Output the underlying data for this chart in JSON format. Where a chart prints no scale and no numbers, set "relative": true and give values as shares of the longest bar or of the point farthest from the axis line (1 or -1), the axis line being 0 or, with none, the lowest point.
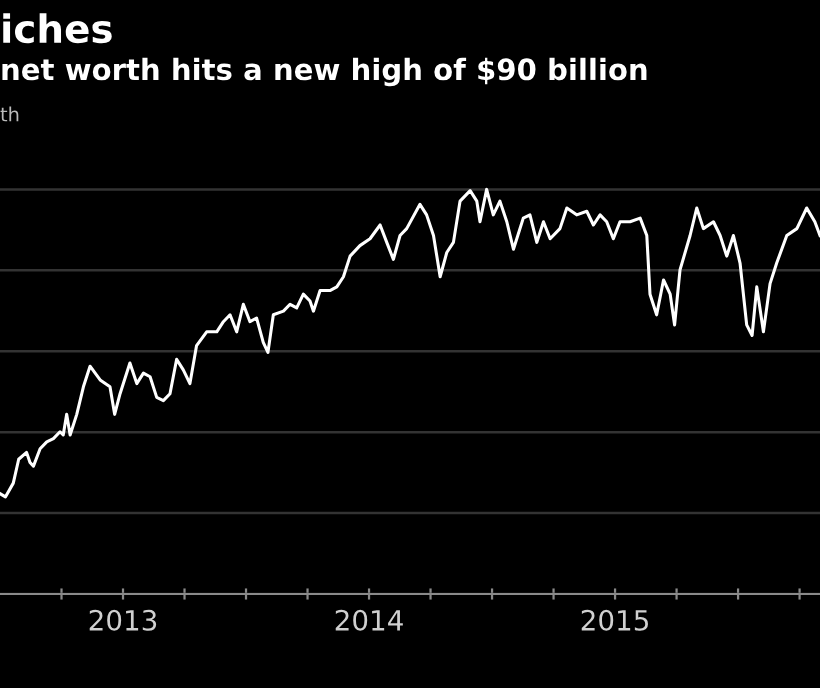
{
  "chart_data": {
    "type": "line",
    "title": "iches",
    "subtitle": "net worth hits a new high of $90 billion",
    "ylabel": "th",
    "relative": true,
    "grid": "y",
    "xlim": [
      2013.0,
      2016.333
    ],
    "xticks": [
      {
        "value": 2013.25,
        "label": null
      },
      {
        "value": 2013.5,
        "label": "2013"
      },
      {
        "value": 2013.75,
        "label": null
      },
      {
        "value": 2014,
        "label": null
      },
      {
        "value": 2014.25,
        "label": null
      },
      {
        "value": 2014.5,
        "label": "2014"
      },
      {
        "value": 2014.75,
        "label": null
      },
      {
        "value": 2015,
        "label": null
      },
      {
        "value": 2015.25,
        "label": null
      },
      {
        "value": 2015.5,
        "label": "2015"
      },
      {
        "value": 2015.75,
        "label": null
      },
      {
        "value": 2016,
        "label": null
      },
      {
        "value": 2016.25,
        "label": null
      }
    ],
    "series": [
      {
        "color": "#ffffff",
        "x": [
          2013.0,
          2013.022,
          2013.054,
          2013.076,
          2013.108,
          2013.122,
          2013.136,
          2013.163,
          2013.19,
          2013.217,
          2013.244,
          2013.257,
          2013.271,
          2013.285,
          2013.312,
          2013.339,
          2013.366,
          2013.407,
          2013.447,
          2013.466,
          2013.488,
          2013.528,
          2013.556,
          2013.583,
          2013.61,
          2013.637,
          2013.664,
          2013.691,
          2013.718,
          2013.745,
          2013.772,
          2013.799,
          2013.84,
          2013.881,
          2013.908,
          2013.935,
          2013.962,
          2013.989,
          2014.016,
          2014.043,
          2014.07,
          2014.089,
          2014.111,
          2014.152,
          2014.179,
          2014.206,
          2014.233,
          2014.26,
          2014.274,
          2014.301,
          2014.341,
          2014.369,
          2014.396,
          2014.423,
          2014.463,
          2014.504,
          2014.545,
          2014.572,
          2014.599,
          2014.626,
          2014.653,
          2014.707,
          2014.734,
          2014.762,
          2014.789,
          2014.816,
          2014.843,
          2014.87,
          2014.911,
          2014.938,
          2014.951,
          2014.978,
          2015.005,
          2015.032,
          2015.06,
          2015.087,
          2015.127,
          2015.154,
          2015.182,
          2015.209,
          2015.236,
          2015.276,
          2015.304,
          2015.344,
          2015.385,
          2015.412,
          2015.439,
          2015.466,
          2015.493,
          2015.52,
          2015.561,
          2015.602,
          2015.629,
          2015.642,
          2015.669,
          2015.697,
          2015.724,
          2015.742,
          2015.764,
          2015.805,
          2015.832,
          2015.859,
          2015.9,
          2015.927,
          2015.954,
          2015.981,
          2016.008,
          2016.035,
          2016.057,
          2016.076,
          2016.103,
          2016.13,
          2016.157,
          2016.198,
          2016.239,
          2016.279,
          2016.312,
          2016.333
        ],
        "values": [
          0.248,
          0.24,
          0.274,
          0.333,
          0.35,
          0.325,
          0.316,
          0.359,
          0.376,
          0.384,
          0.401,
          0.393,
          0.444,
          0.393,
          0.444,
          0.512,
          0.563,
          0.529,
          0.512,
          0.444,
          0.495,
          0.571,
          0.52,
          0.546,
          0.537,
          0.486,
          0.478,
          0.495,
          0.58,
          0.554,
          0.52,
          0.614,
          0.648,
          0.648,
          0.673,
          0.69,
          0.648,
          0.716,
          0.673,
          0.682,
          0.622,
          0.597,
          0.69,
          0.699,
          0.716,
          0.707,
          0.741,
          0.724,
          0.699,
          0.75,
          0.75,
          0.759,
          0.784,
          0.835,
          0.861,
          0.878,
          0.912,
          0.869,
          0.827,
          0.886,
          0.903,
          0.963,
          0.937,
          0.886,
          0.784,
          0.844,
          0.869,
          0.971,
          0.997,
          0.971,
          0.92,
          1.0,
          0.937,
          0.971,
          0.92,
          0.852,
          0.929,
          0.937,
          0.869,
          0.92,
          0.878,
          0.903,
          0.954,
          0.937,
          0.946,
          0.912,
          0.937,
          0.92,
          0.878,
          0.92,
          0.92,
          0.929,
          0.886,
          0.741,
          0.69,
          0.776,
          0.741,
          0.665,
          0.801,
          0.886,
          0.954,
          0.903,
          0.92,
          0.886,
          0.835,
          0.886,
          0.818,
          0.665,
          0.639,
          0.759,
          0.648,
          0.767,
          0.818,
          0.886,
          0.903,
          0.954,
          0.92,
          0.886
        ]
      }
    ]
  }
}
